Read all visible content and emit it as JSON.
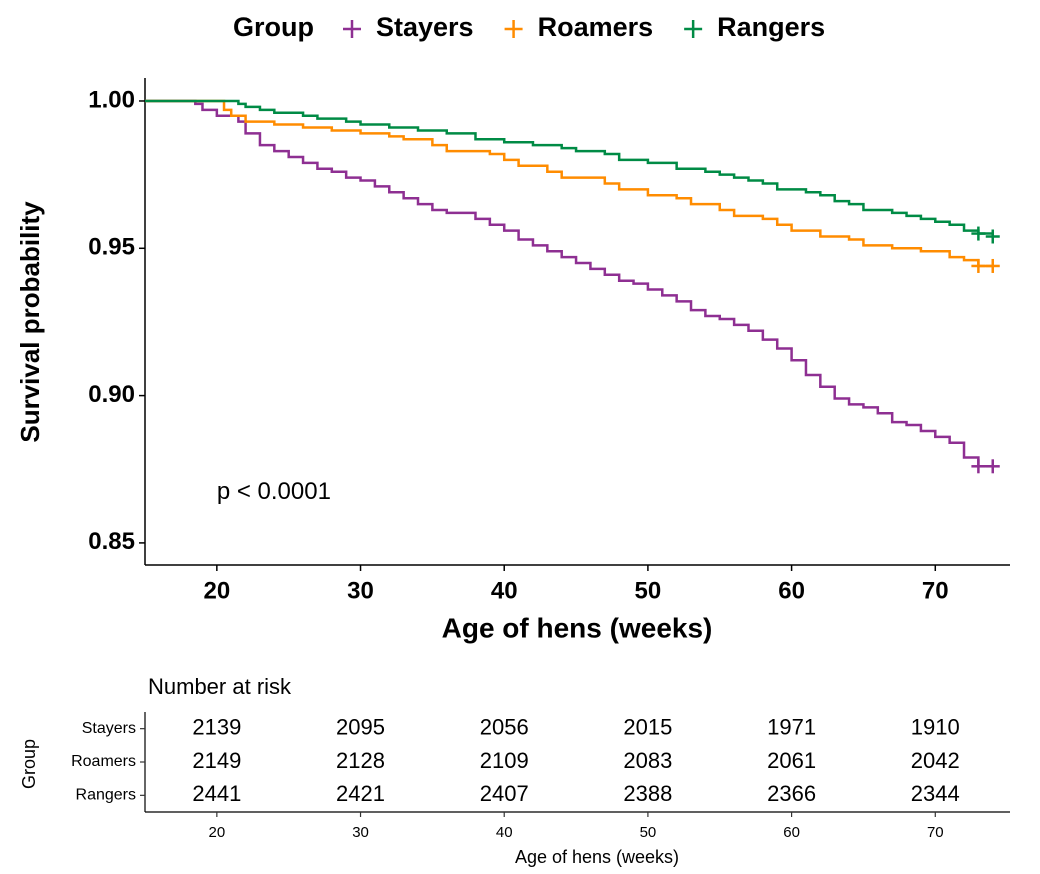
{
  "chart_data": [
    {
      "type": "step",
      "legend_title": "Group",
      "xlabel": "Age of hens (weeks)",
      "ylabel": "Survival probability",
      "annotation": {
        "text": "p < 0.0001",
        "x": 20,
        "y": 0.867
      },
      "xlim": [
        15,
        75.2
      ],
      "ylim": [
        0.8425,
        1.0078
      ],
      "xticks": [
        20,
        30,
        40,
        50,
        60,
        70
      ],
      "yticks": [
        {
          "value": 0.85,
          "label": "0.85"
        },
        {
          "value": 0.9,
          "label": "0.90"
        },
        {
          "value": 0.95,
          "label": "0.95"
        },
        {
          "value": 1.0,
          "label": "1.00"
        }
      ],
      "series": [
        {
          "name": "Stayers",
          "color": "#8e2f92",
          "x": [
            15,
            18,
            18.5,
            19,
            20,
            21.5,
            22,
            23,
            24,
            25,
            26,
            27,
            28,
            29,
            30,
            31,
            32,
            33,
            34,
            35,
            36,
            38,
            39,
            40,
            41,
            42,
            43,
            44,
            45,
            46,
            47,
            48,
            49,
            50,
            51,
            52,
            53,
            54,
            55,
            56,
            57,
            58,
            59,
            60,
            61,
            62,
            63,
            64,
            65,
            66,
            67,
            68,
            69,
            70,
            71,
            72,
            73,
            74
          ],
          "values": [
            1.0,
            1.0,
            0.999,
            0.997,
            0.995,
            0.993,
            0.989,
            0.985,
            0.983,
            0.981,
            0.979,
            0.977,
            0.976,
            0.974,
            0.973,
            0.971,
            0.969,
            0.967,
            0.965,
            0.963,
            0.962,
            0.96,
            0.958,
            0.956,
            0.953,
            0.951,
            0.949,
            0.947,
            0.945,
            0.943,
            0.941,
            0.939,
            0.938,
            0.936,
            0.934,
            0.932,
            0.929,
            0.927,
            0.926,
            0.924,
            0.922,
            0.919,
            0.916,
            0.912,
            0.907,
            0.903,
            0.899,
            0.897,
            0.896,
            0.894,
            0.891,
            0.89,
            0.888,
            0.886,
            0.884,
            0.879,
            0.876,
            0.876
          ],
          "censored_x": [
            73,
            74
          ],
          "censored_y": [
            0.876,
            0.876
          ]
        },
        {
          "name": "Roamers",
          "color": "#ff8c00",
          "x": [
            15,
            20,
            20.5,
            21,
            22,
            24,
            26,
            28,
            30,
            32,
            33,
            35,
            36,
            39,
            40,
            41,
            43,
            44,
            47,
            48,
            50,
            52,
            53,
            55,
            56,
            58,
            59,
            60,
            62,
            64,
            65,
            67,
            69,
            71,
            72,
            73,
            74
          ],
          "values": [
            1.0,
            1.0,
            0.997,
            0.995,
            0.993,
            0.992,
            0.991,
            0.99,
            0.989,
            0.988,
            0.987,
            0.985,
            0.983,
            0.982,
            0.98,
            0.978,
            0.976,
            0.974,
            0.972,
            0.97,
            0.968,
            0.967,
            0.965,
            0.963,
            0.961,
            0.96,
            0.958,
            0.956,
            0.954,
            0.953,
            0.951,
            0.95,
            0.949,
            0.947,
            0.946,
            0.944,
            0.944
          ],
          "censored_x": [
            73,
            74
          ],
          "censored_y": [
            0.944,
            0.944
          ]
        },
        {
          "name": "Rangers",
          "color": "#008b45",
          "x": [
            15,
            21,
            21.5,
            22,
            23,
            24,
            26,
            27,
            29,
            30,
            32,
            34,
            36,
            38,
            40,
            42,
            44,
            45,
            47,
            48,
            50,
            52,
            54,
            55,
            56,
            57,
            58,
            59,
            61,
            62,
            63,
            64,
            65,
            67,
            68,
            69,
            70,
            71,
            72,
            73,
            74
          ],
          "values": [
            1.0,
            1.0,
            0.999,
            0.998,
            0.997,
            0.996,
            0.995,
            0.994,
            0.993,
            0.992,
            0.991,
            0.99,
            0.989,
            0.987,
            0.986,
            0.985,
            0.984,
            0.983,
            0.982,
            0.98,
            0.979,
            0.977,
            0.976,
            0.975,
            0.974,
            0.973,
            0.972,
            0.97,
            0.969,
            0.968,
            0.966,
            0.965,
            0.963,
            0.962,
            0.961,
            0.96,
            0.959,
            0.958,
            0.956,
            0.955,
            0.954
          ],
          "censored_x": [
            73,
            74
          ],
          "censored_y": [
            0.955,
            0.954
          ]
        }
      ]
    },
    {
      "type": "table",
      "title": "Number at risk",
      "xlabel": "Age of hens (weeks)",
      "ylabel": "Group",
      "xlim": [
        15,
        75.2
      ],
      "xticks": [
        20,
        30,
        40,
        50,
        60,
        70
      ],
      "rows": [
        {
          "name": "Stayers",
          "color": "#8e2f92",
          "values": [
            2139,
            2095,
            2056,
            2015,
            1971,
            1910
          ]
        },
        {
          "name": "Roamers",
          "color": "#ff8c00",
          "values": [
            2149,
            2128,
            2109,
            2083,
            2061,
            2042
          ]
        },
        {
          "name": "Rangers",
          "color": "#008b45",
          "values": [
            2441,
            2421,
            2407,
            2388,
            2366,
            2344
          ]
        }
      ]
    }
  ]
}
